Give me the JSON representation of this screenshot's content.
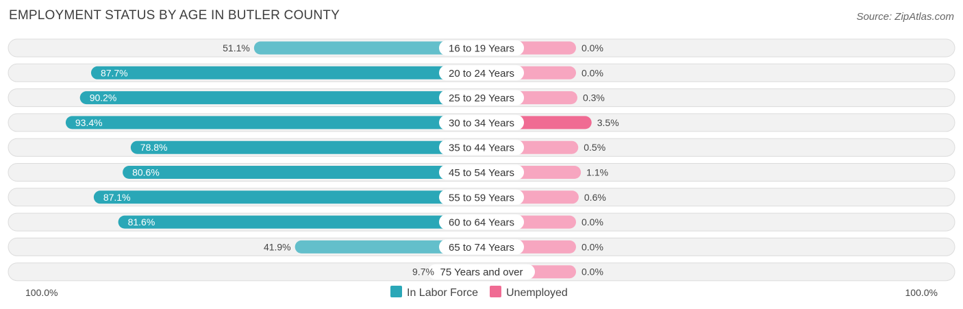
{
  "title": "EMPLOYMENT STATUS BY AGE IN BUTLER COUNTY",
  "source": "Source: ZipAtlas.com",
  "colors": {
    "labor_strong": "#2aa7b7",
    "labor_light": "#63bfcb",
    "unemployed_strong": "#f06b93",
    "unemployed_light": "#f7a6c0"
  },
  "chart_data": {
    "type": "bar",
    "orientation": "diverging-horizontal",
    "title": "EMPLOYMENT STATUS BY AGE IN BUTLER COUNTY",
    "categories": [
      "16 to 19 Years",
      "20 to 24 Years",
      "25 to 29 Years",
      "30 to 34 Years",
      "35 to 44 Years",
      "45 to 54 Years",
      "55 to 59 Years",
      "60 to 64 Years",
      "65 to 74 Years",
      "75 Years and over"
    ],
    "series": [
      {
        "name": "In Labor Force",
        "values": [
          51.1,
          87.7,
          90.2,
          93.4,
          78.8,
          80.6,
          87.1,
          81.6,
          41.9,
          9.7
        ],
        "labels": [
          "51.1%",
          "87.7%",
          "90.2%",
          "93.4%",
          "78.8%",
          "80.6%",
          "87.1%",
          "81.6%",
          "41.9%",
          "9.7%"
        ]
      },
      {
        "name": "Unemployed",
        "values": [
          0.0,
          0.0,
          0.3,
          3.5,
          0.5,
          1.1,
          0.6,
          0.0,
          0.0,
          0.0
        ],
        "labels": [
          "0.0%",
          "0.0%",
          "0.3%",
          "3.5%",
          "0.5%",
          "1.1%",
          "0.6%",
          "0.0%",
          "0.0%",
          "0.0%"
        ]
      }
    ],
    "axis": {
      "left_label": "100.0%",
      "right_label": "100.0%",
      "left_max": 100,
      "right_max": 100
    },
    "legend_position": "bottom-center"
  }
}
